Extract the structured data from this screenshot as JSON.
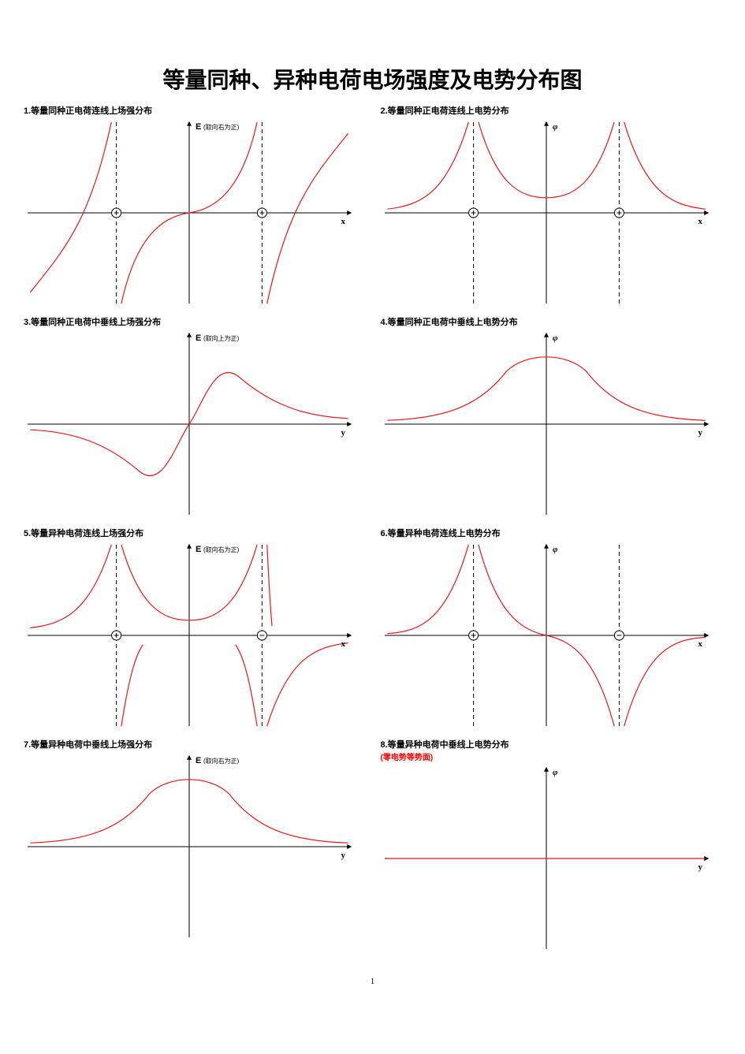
{
  "page_title": "等量同种、异种电荷电场强度及电势分布图",
  "page_number": "1",
  "style": {
    "curve_color": "#e41a1c",
    "axis_color": "#000000",
    "dash_color": "#000000",
    "background": "#ffffff",
    "curve_width": 1.2,
    "axis_width": 1,
    "font_caption": 11,
    "font_axis": 11
  },
  "charts": [
    {
      "id": 1,
      "title": "1.等量同种正电荷连线上场强分布",
      "ylabel": "E",
      "ylabel_sub": "(取向右为正)",
      "xlabel": "x",
      "type": "line",
      "x_axis_pos": 0.5,
      "y_axis_pos": 0.5,
      "charges": [
        {
          "x": 0.28,
          "sign": "+"
        },
        {
          "x": 0.72,
          "sign": "+"
        }
      ],
      "dashes": [
        0.28,
        0.72
      ],
      "paths": [
        "M 0.02 0.92 C 0.12 0.7, 0.20 0.55, 0.265 0.02",
        "M 0.295 0.98 C 0.34 0.62, 0.42 0.52, 0.50 0.50",
        "M 0.50 0.50 C 0.58 0.48, 0.66 0.38, 0.705 0.02",
        "M 0.735 0.98 C 0.80 0.45, 0.88 0.30, 0.98 0.08"
      ]
    },
    {
      "id": 2,
      "title": "2.等量同种正电荷连线上电势分布",
      "ylabel": "φ",
      "ylabel_sub": "",
      "xlabel": "x",
      "type": "line",
      "x_axis_pos": 0.5,
      "y_axis_pos": 0.5,
      "charges": [
        {
          "x": 0.28,
          "sign": "+"
        },
        {
          "x": 0.72,
          "sign": "+"
        }
      ],
      "dashes": [
        0.28,
        0.72
      ],
      "paths": [
        "M 0.02 0.48 C 0.12 0.46, 0.20 0.40, 0.265 0.02",
        "M 0.295 0.02 C 0.35 0.35, 0.42 0.42, 0.50 0.42 C 0.58 0.42, 0.65 0.35, 0.705 0.02",
        "M 0.735 0.02 C 0.80 0.40, 0.88 0.46, 0.98 0.48"
      ]
    },
    {
      "id": 3,
      "title": "3.等量同种正电荷中垂线上场强分布",
      "ylabel": "E",
      "ylabel_sub": "(取向上为正)",
      "xlabel": "y",
      "type": "line",
      "x_axis_pos": 0.5,
      "y_axis_pos": 0.5,
      "charges": [],
      "dashes": [],
      "paths": [
        "M 0.02 0.53 C 0.15 0.54, 0.25 0.60, 0.35 0.75 C 0.42 0.85, 0.46 0.60, 0.50 0.50 C 0.54 0.40, 0.58 0.15, 0.65 0.25 C 0.75 0.40, 0.85 0.46, 0.98 0.47"
      ]
    },
    {
      "id": 4,
      "title": "4.等量同种正电荷中垂线上电势分布",
      "ylabel": "φ",
      "ylabel_sub": "",
      "xlabel": "y",
      "type": "line",
      "x_axis_pos": 0.5,
      "y_axis_pos": 0.5,
      "charges": [],
      "dashes": [],
      "paths": [
        "M 0.02 0.48 C 0.20 0.47, 0.30 0.40, 0.38 0.22 C 0.44 0.12, 0.56 0.12, 0.62 0.22 C 0.70 0.40, 0.80 0.47, 0.98 0.48"
      ]
    },
    {
      "id": 5,
      "title": "5.等量异种电荷连线上场强分布",
      "ylabel": "E",
      "ylabel_sub": "(取向右为正)",
      "xlabel": "x",
      "type": "line",
      "x_axis_pos": 0.5,
      "y_axis_pos": 0.5,
      "charges": [
        {
          "x": 0.28,
          "sign": "+"
        },
        {
          "x": 0.72,
          "sign": "-"
        }
      ],
      "dashes": [
        0.28,
        0.72
      ],
      "paths": [
        "M 0.02 0.46 C 0.12 0.44, 0.20 0.38, 0.265 0.02",
        "M 0.295 0.02 C 0.35 0.35, 0.42 0.42, 0.50 0.42 C 0.58 0.42, 0.65 0.35, 0.705 0.02",
        "M 0.295 0.98 C 0.32 0.70, 0.34 0.60, 0.36 0.55",
        "M 0.64 0.55 C 0.66 0.60, 0.68 0.70, 0.705 0.98",
        "M 0.735 0.02 C 0.74 0.20, 0.745 0.35, 0.75 0.45",
        "M 0.735 0.98 C 0.80 0.62, 0.88 0.56, 0.98 0.54"
      ]
    },
    {
      "id": 6,
      "title": "6.等量异种电荷连线上电势分布",
      "ylabel": "φ",
      "ylabel_sub": "",
      "xlabel": "x",
      "type": "line",
      "x_axis_pos": 0.5,
      "y_axis_pos": 0.5,
      "charges": [
        {
          "x": 0.28,
          "sign": "+"
        },
        {
          "x": 0.72,
          "sign": "-"
        }
      ],
      "dashes": [
        0.28,
        0.72
      ],
      "paths": [
        "M 0.02 0.49 C 0.12 0.48, 0.20 0.42, 0.265 0.02",
        "M 0.295 0.02 C 0.35 0.38, 0.42 0.47, 0.50 0.50 C 0.58 0.53, 0.65 0.62, 0.705 0.98",
        "M 0.735 0.98 C 0.80 0.58, 0.88 0.52, 0.98 0.51"
      ]
    },
    {
      "id": 7,
      "title": "7.等量异种电荷中垂线上场强分布",
      "ylabel": "E",
      "ylabel_sub": "(取向右为正)",
      "xlabel": "y",
      "type": "line",
      "x_axis_pos": 0.5,
      "y_axis_pos": 0.5,
      "charges": [],
      "dashes": [],
      "paths": [
        "M 0.02 0.48 C 0.20 0.47, 0.30 0.40, 0.38 0.22 C 0.44 0.12, 0.56 0.12, 0.62 0.22 C 0.70 0.40, 0.80 0.47, 0.98 0.48"
      ]
    },
    {
      "id": 8,
      "title": "8.等量异种电荷中垂线上电势分布",
      "title_extra": "(零电势等势面)",
      "ylabel": "φ",
      "ylabel_sub": "",
      "xlabel": "y",
      "type": "line",
      "x_axis_pos": 0.5,
      "y_axis_pos": 0.5,
      "charges": [],
      "dashes": [],
      "paths": [
        "M 0.02 0.50 L 0.98 0.50"
      ]
    }
  ]
}
